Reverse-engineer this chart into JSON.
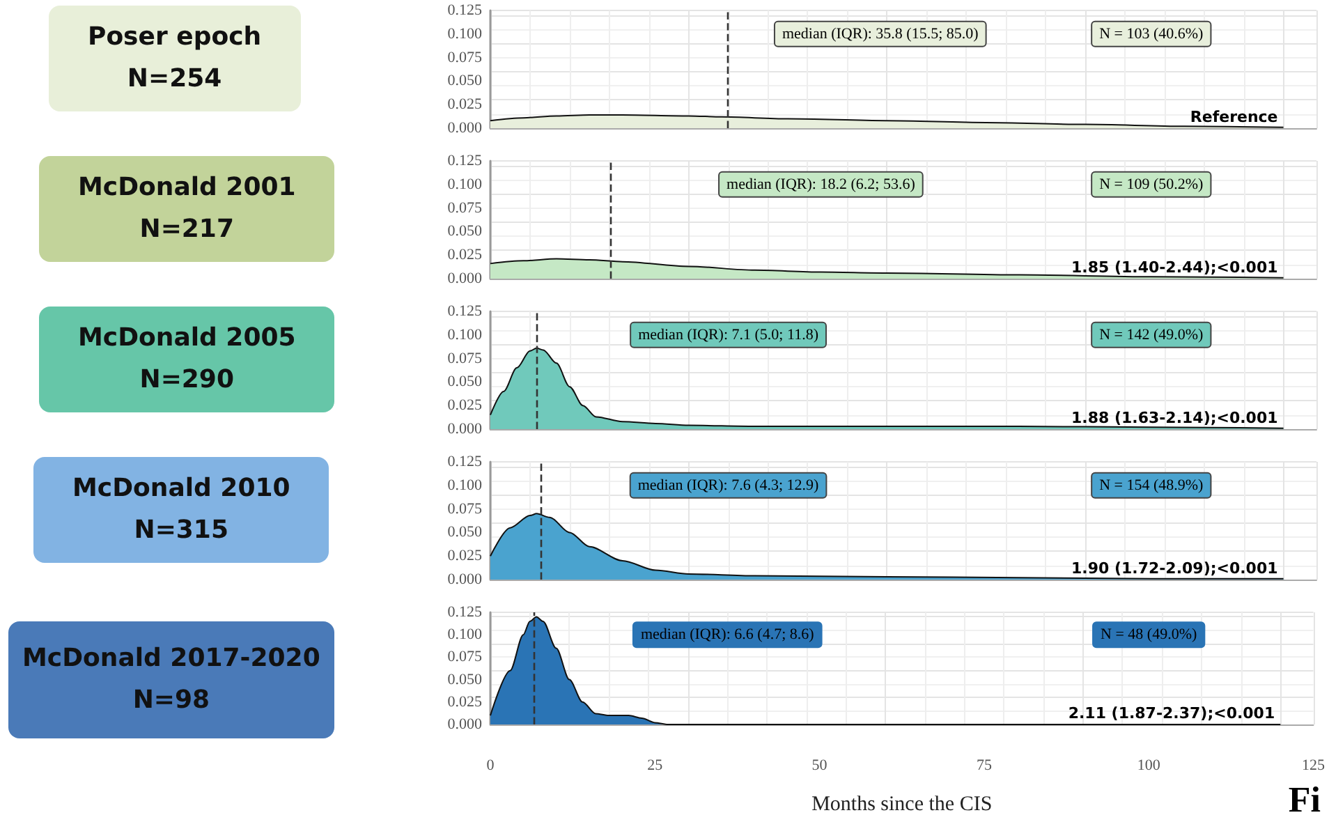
{
  "chart_data": [
    {
      "type": "area",
      "ylabel": "Poser epoch\nN=254",
      "x": [
        0,
        5,
        10,
        15,
        20,
        30,
        35,
        45,
        60,
        75,
        90,
        105,
        120
      ],
      "series": [
        {
          "color": "#e8efdc",
          "values": [
            0.008,
            0.011,
            0.013,
            0.014,
            0.014,
            0.013,
            0.012,
            0.01,
            0.008,
            0.006,
            0.004,
            0.002,
            0.001
          ]
        }
      ],
      "xlim": [
        0,
        125
      ],
      "xticks": [
        0,
        25,
        50,
        75,
        100,
        125
      ],
      "ylim": [
        0,
        0.125
      ],
      "yticks": [
        {
          "value": 0,
          "label": "0.000"
        },
        {
          "value": 0.025,
          "label": "0.025"
        },
        {
          "value": 0.05,
          "label": "0.050"
        },
        {
          "value": 0.075,
          "label": "0.075"
        },
        {
          "value": 0.1,
          "label": "0.100"
        },
        {
          "value": 0.125,
          "label": "0.125"
        }
      ],
      "tick_labels": "y",
      "grid": true,
      "ref_lines": [
        {
          "axis": "x",
          "value": 35.8,
          "line_style": "dashed"
        }
      ],
      "annotations": [
        "median (IQR): 35.8 (15.5; 85.0)",
        "N = 103 (40.6%)",
        "Reference"
      ]
    },
    {
      "type": "area",
      "ylabel": "McDonald 2001\nN=217",
      "x": [
        0,
        5,
        10,
        15,
        20,
        30,
        40,
        50,
        60,
        80,
        100,
        120
      ],
      "series": [
        {
          "color": "#c5e8c5",
          "values": [
            0.016,
            0.019,
            0.021,
            0.02,
            0.018,
            0.013,
            0.009,
            0.007,
            0.006,
            0.004,
            0.002,
            0.001
          ]
        }
      ],
      "xlim": [
        0,
        125
      ],
      "xticks": [
        0,
        25,
        50,
        75,
        100,
        125
      ],
      "ylim": [
        0,
        0.125
      ],
      "yticks": [
        {
          "value": 0,
          "label": "0.000"
        },
        {
          "value": 0.025,
          "label": "0.025"
        },
        {
          "value": 0.05,
          "label": "0.050"
        },
        {
          "value": 0.075,
          "label": "0.075"
        },
        {
          "value": 0.1,
          "label": "0.100"
        },
        {
          "value": 0.125,
          "label": "0.125"
        }
      ],
      "tick_labels": "y",
      "grid": true,
      "ref_lines": [
        {
          "axis": "x",
          "value": 18.2,
          "line_style": "dashed"
        }
      ],
      "annotations": [
        "median (IQR): 18.2 (6.2; 53.6)",
        "N = 109 (50.2%)",
        "1.85 (1.40-2.44);<0.001"
      ]
    },
    {
      "type": "area",
      "ylabel": "McDonald 2005\nN=290",
      "x": [
        0,
        2,
        4,
        6,
        7,
        8,
        10,
        12,
        14,
        16,
        20,
        25,
        30,
        40,
        60,
        80,
        100,
        120
      ],
      "series": [
        {
          "color": "#70c9bb",
          "values": [
            0.015,
            0.04,
            0.065,
            0.083,
            0.086,
            0.084,
            0.07,
            0.045,
            0.025,
            0.013,
            0.008,
            0.006,
            0.004,
            0.003,
            0.003,
            0.003,
            0.002,
            0.001
          ]
        }
      ],
      "xlim": [
        0,
        125
      ],
      "xticks": [
        0,
        25,
        50,
        75,
        100,
        125
      ],
      "ylim": [
        0,
        0.125
      ],
      "yticks": [
        {
          "value": 0,
          "label": "0.000"
        },
        {
          "value": 0.025,
          "label": "0.025"
        },
        {
          "value": 0.05,
          "label": "0.050"
        },
        {
          "value": 0.075,
          "label": "0.075"
        },
        {
          "value": 0.1,
          "label": "0.100"
        },
        {
          "value": 0.125,
          "label": "0.125"
        }
      ],
      "tick_labels": "y",
      "grid": true,
      "ref_lines": [
        {
          "axis": "x",
          "value": 7.1,
          "line_style": "dashed"
        }
      ],
      "annotations": [
        "median (IQR): 7.1 (5.0; 11.8)",
        "N = 142 (49.0%)",
        "1.88 (1.63-2.14);<0.001"
      ]
    },
    {
      "type": "area",
      "ylabel": "McDonald 2010\nN=315",
      "x": [
        0,
        3,
        6,
        7,
        9,
        12,
        15,
        20,
        25,
        30,
        40,
        60,
        80,
        100,
        120
      ],
      "series": [
        {
          "color": "#4aa3cf",
          "values": [
            0.025,
            0.055,
            0.068,
            0.07,
            0.066,
            0.05,
            0.035,
            0.02,
            0.01,
            0.006,
            0.004,
            0.003,
            0.002,
            0.001,
            0.001
          ]
        }
      ],
      "xlim": [
        0,
        125
      ],
      "xticks": [
        0,
        25,
        50,
        75,
        100,
        125
      ],
      "ylim": [
        0,
        0.125
      ],
      "yticks": [
        {
          "value": 0,
          "label": "0.000"
        },
        {
          "value": 0.025,
          "label": "0.025"
        },
        {
          "value": 0.05,
          "label": "0.050"
        },
        {
          "value": 0.075,
          "label": "0.075"
        },
        {
          "value": 0.1,
          "label": "0.100"
        },
        {
          "value": 0.125,
          "label": "0.125"
        }
      ],
      "tick_labels": "y",
      "grid": true,
      "ref_lines": [
        {
          "axis": "x",
          "value": 7.6,
          "line_style": "dashed"
        }
      ],
      "annotations": [
        "median (IQR): 7.6 (4.3; 12.9)",
        "N = 154 (48.9%)",
        "1.90 (1.72-2.09);<0.001"
      ]
    },
    {
      "type": "area",
      "ylabel": "McDonald 2017-2020\nN=98",
      "xlabel": "Months since the CIS",
      "x": [
        0,
        3,
        5,
        6,
        7,
        8,
        10,
        12,
        14,
        16,
        18,
        21,
        23,
        25,
        27,
        60,
        120
      ],
      "series": [
        {
          "color": "#2a74b5",
          "values": [
            0.01,
            0.06,
            0.1,
            0.115,
            0.12,
            0.115,
            0.085,
            0.05,
            0.025,
            0.012,
            0.01,
            0.01,
            0.007,
            0.002,
            0,
            0,
            0
          ]
        }
      ],
      "xlim": [
        0,
        125
      ],
      "xticks": [
        0,
        25,
        50,
        75,
        100,
        125
      ],
      "ylim": [
        0,
        0.125
      ],
      "yticks": [
        {
          "value": 0,
          "label": "0.000"
        },
        {
          "value": 0.025,
          "label": "0.025"
        },
        {
          "value": 0.05,
          "label": "0.050"
        },
        {
          "value": 0.075,
          "label": "0.075"
        },
        {
          "value": 0.1,
          "label": "0.100"
        },
        {
          "value": 0.125,
          "label": "0.125"
        }
      ],
      "grid": true,
      "ref_lines": [
        {
          "axis": "x",
          "value": 6.6,
          "line_style": "dashed"
        }
      ],
      "annotations": [
        "median (IQR): 6.6 (4.7; 8.6)",
        "N = 48 (49.0%)",
        "2.11 (1.87-2.37);<0.001",
        "Fi"
      ]
    }
  ]
}
